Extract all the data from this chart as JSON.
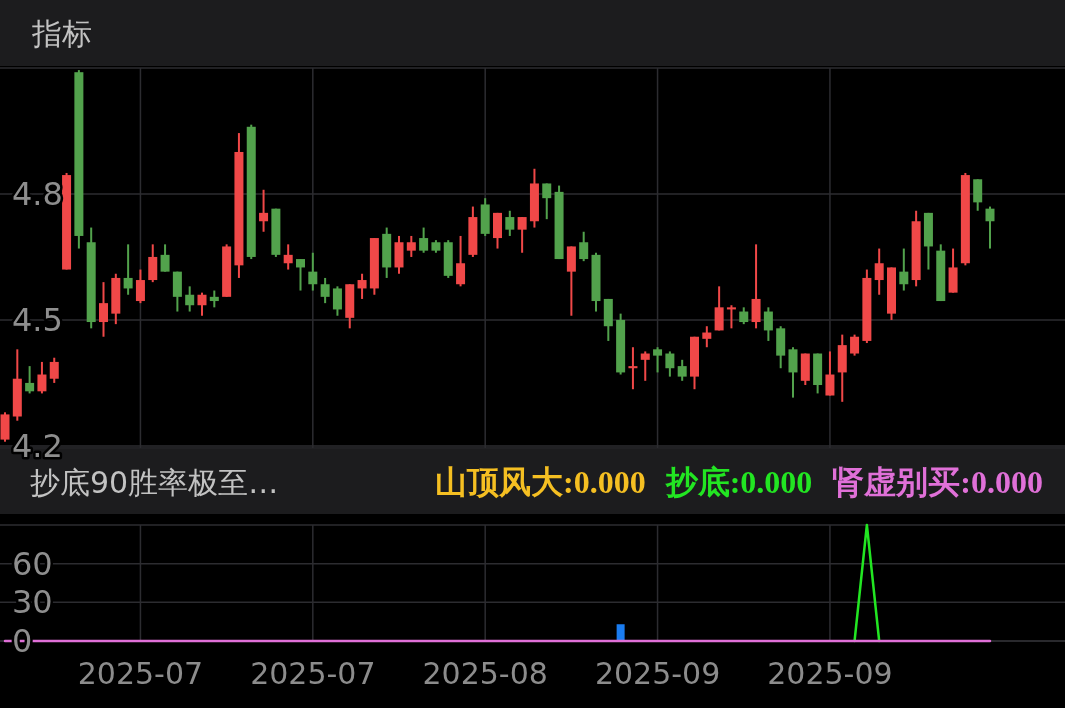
{
  "chart_data": [
    {
      "type": "candlestick",
      "title": "指标",
      "categories": [
        null,
        null,
        null,
        null,
        null,
        null,
        null,
        null,
        null,
        null,
        null,
        "2025-07",
        null,
        null,
        null,
        null,
        null,
        null,
        null,
        null,
        null,
        null,
        null,
        null,
        null,
        "2025-07",
        null,
        null,
        null,
        null,
        null,
        null,
        null,
        null,
        null,
        null,
        null,
        null,
        null,
        "2025-08",
        null,
        null,
        null,
        null,
        null,
        null,
        null,
        null,
        null,
        null,
        null,
        null,
        null,
        "2025-09",
        null,
        null,
        null,
        null,
        null,
        null,
        null,
        null,
        null,
        null,
        null,
        null,
        null,
        "2025-09",
        null,
        null,
        null,
        null,
        null,
        null,
        null,
        null,
        null,
        null,
        null,
        null,
        null
      ],
      "ohlc": [
        [
          4.215,
          4.28,
          4.21,
          4.275
        ],
        [
          4.27,
          4.43,
          4.26,
          4.36
        ],
        [
          4.35,
          4.39,
          4.325,
          4.33
        ],
        [
          4.33,
          4.4,
          4.325,
          4.37
        ],
        [
          4.36,
          4.41,
          4.35,
          4.4
        ],
        [
          4.62,
          4.85,
          4.62,
          4.845
        ],
        [
          5.09,
          5.095,
          4.67,
          4.7
        ],
        [
          4.685,
          4.72,
          4.48,
          4.495
        ],
        [
          4.495,
          4.59,
          4.46,
          4.54
        ],
        [
          4.515,
          4.61,
          4.49,
          4.6
        ],
        [
          4.6,
          4.68,
          4.56,
          4.575
        ],
        [
          4.545,
          4.62,
          4.54,
          4.595
        ],
        [
          4.595,
          4.68,
          4.59,
          4.65
        ],
        [
          4.655,
          4.68,
          4.615,
          4.615
        ],
        [
          4.615,
          4.615,
          4.52,
          4.555
        ],
        [
          4.56,
          4.58,
          4.52,
          4.535
        ],
        [
          4.535,
          4.565,
          4.51,
          4.56
        ],
        [
          4.555,
          4.57,
          4.53,
          4.545
        ],
        [
          4.555,
          4.68,
          4.555,
          4.675
        ],
        [
          4.63,
          4.945,
          4.6,
          4.9
        ],
        [
          4.96,
          4.965,
          4.645,
          4.65
        ],
        [
          4.735,
          4.81,
          4.71,
          4.755
        ],
        [
          4.765,
          4.765,
          4.65,
          4.655
        ],
        [
          4.635,
          4.68,
          4.62,
          4.655
        ],
        [
          4.645,
          4.645,
          4.57,
          4.625
        ],
        [
          4.615,
          4.66,
          4.57,
          4.585
        ],
        [
          4.585,
          4.6,
          4.54,
          4.555
        ],
        [
          4.575,
          4.58,
          4.51,
          4.525
        ],
        [
          4.505,
          4.585,
          4.48,
          4.585
        ],
        [
          4.575,
          4.61,
          4.55,
          4.595
        ],
        [
          4.575,
          4.695,
          4.56,
          4.695
        ],
        [
          4.705,
          4.72,
          4.6,
          4.625
        ],
        [
          4.625,
          4.7,
          4.61,
          4.685
        ],
        [
          4.665,
          4.7,
          4.65,
          4.685
        ],
        [
          4.695,
          4.72,
          4.66,
          4.665
        ],
        [
          4.685,
          4.69,
          4.66,
          4.665
        ],
        [
          4.685,
          4.69,
          4.6,
          4.605
        ],
        [
          4.585,
          4.7,
          4.58,
          4.635
        ],
        [
          4.655,
          4.77,
          4.65,
          4.745
        ],
        [
          4.775,
          4.79,
          4.7,
          4.705
        ],
        [
          4.695,
          4.755,
          4.67,
          4.755
        ],
        [
          4.745,
          4.76,
          4.7,
          4.715
        ],
        [
          4.715,
          4.745,
          4.66,
          4.745
        ],
        [
          4.735,
          4.86,
          4.72,
          4.825
        ],
        [
          4.825,
          4.825,
          4.74,
          4.79
        ],
        [
          4.805,
          4.82,
          4.645,
          4.645
        ],
        [
          4.615,
          4.675,
          4.51,
          4.675
        ],
        [
          4.685,
          4.71,
          4.64,
          4.645
        ],
        [
          4.655,
          4.66,
          4.52,
          4.545
        ],
        [
          4.55,
          4.55,
          4.45,
          4.485
        ],
        [
          4.5,
          4.515,
          4.37,
          4.375
        ],
        [
          4.385,
          4.435,
          4.335,
          4.39
        ],
        [
          4.405,
          4.425,
          4.355,
          4.42
        ],
        [
          4.43,
          4.435,
          4.375,
          4.415
        ],
        [
          4.42,
          4.425,
          4.365,
          4.385
        ],
        [
          4.39,
          4.405,
          4.355,
          4.365
        ],
        [
          4.365,
          4.46,
          4.335,
          4.46
        ],
        [
          4.455,
          4.485,
          4.435,
          4.47
        ],
        [
          4.475,
          4.58,
          4.475,
          4.53
        ],
        [
          4.525,
          4.535,
          4.48,
          4.53
        ],
        [
          4.52,
          4.53,
          4.49,
          4.495
        ],
        [
          4.495,
          4.68,
          4.48,
          4.55
        ],
        [
          4.52,
          4.53,
          4.45,
          4.475
        ],
        [
          4.48,
          4.485,
          4.385,
          4.415
        ],
        [
          4.43,
          4.435,
          4.315,
          4.375
        ],
        [
          4.355,
          4.42,
          4.345,
          4.42
        ],
        [
          4.42,
          4.42,
          4.325,
          4.345
        ],
        [
          4.32,
          4.425,
          4.32,
          4.37
        ],
        [
          4.375,
          4.465,
          4.305,
          4.44
        ],
        [
          4.42,
          4.465,
          4.415,
          4.46
        ],
        [
          4.45,
          4.62,
          4.445,
          4.6
        ],
        [
          4.595,
          4.67,
          4.56,
          4.635
        ],
        [
          4.515,
          4.625,
          4.5,
          4.625
        ],
        [
          4.615,
          4.67,
          4.57,
          4.585
        ],
        [
          4.595,
          4.76,
          4.58,
          4.735
        ],
        [
          4.755,
          4.755,
          4.62,
          4.675
        ],
        [
          4.665,
          4.68,
          4.545,
          4.545
        ],
        [
          4.565,
          4.67,
          4.565,
          4.625
        ],
        [
          4.635,
          4.85,
          4.63,
          4.845
        ],
        [
          4.835,
          4.835,
          4.76,
          4.78
        ],
        [
          4.765,
          4.77,
          4.67,
          4.735
        ]
      ],
      "colors": [
        "#f04848",
        "#f04848",
        "#52a24c",
        "#f04848",
        "#f04848",
        "#f04848",
        "#52a24c",
        "#52a24c",
        "#f04848",
        "#f04848",
        "#52a24c",
        "#f04848",
        "#f04848",
        "#52a24c",
        "#52a24c",
        "#52a24c",
        "#f04848",
        "#52a24c",
        "#f04848",
        "#f04848",
        "#52a24c",
        "#f04848",
        "#52a24c",
        "#f04848",
        "#52a24c",
        "#52a24c",
        "#52a24c",
        "#52a24c",
        "#f04848",
        "#f04848",
        "#f04848",
        "#52a24c",
        "#f04848",
        "#f04848",
        "#52a24c",
        "#52a24c",
        "#52a24c",
        "#f04848",
        "#f04848",
        "#52a24c",
        "#f04848",
        "#52a24c",
        "#f04848",
        "#f04848",
        "#52a24c",
        "#52a24c",
        "#f04848",
        "#52a24c",
        "#52a24c",
        "#52a24c",
        "#52a24c",
        "#f04848",
        "#f04848",
        "#52a24c",
        "#52a24c",
        "#52a24c",
        "#f04848",
        "#f04848",
        "#f04848",
        "#f04848",
        "#52a24c",
        "#f04848",
        "#52a24c",
        "#52a24c",
        "#52a24c",
        "#f04848",
        "#52a24c",
        "#f04848",
        "#f04848",
        "#f04848",
        "#f04848",
        "#f04848",
        "#f04848",
        "#52a24c",
        "#f04848",
        "#52a24c",
        "#52a24c",
        "#f04848",
        "#f04848",
        "#52a24c",
        "#52a24c"
      ],
      "ylim": [
        4.195,
        5.1
      ],
      "yticks": [
        4.2,
        4.5,
        4.8
      ],
      "grid": true,
      "tick_labels": "y"
    },
    {
      "type": "line",
      "title": "抄底90胜率极至…",
      "legend": "top",
      "categories": [
        null,
        null,
        null,
        null,
        null,
        null,
        null,
        null,
        null,
        null,
        null,
        "2025-07",
        null,
        null,
        null,
        null,
        null,
        null,
        null,
        null,
        null,
        null,
        null,
        null,
        null,
        "2025-07",
        null,
        null,
        null,
        null,
        null,
        null,
        null,
        null,
        null,
        null,
        null,
        null,
        null,
        "2025-08",
        null,
        null,
        null,
        null,
        null,
        null,
        null,
        null,
        null,
        null,
        null,
        null,
        null,
        "2025-09",
        null,
        null,
        null,
        null,
        null,
        null,
        null,
        null,
        null,
        null,
        null,
        null,
        null,
        "2025-09",
        null,
        null,
        null,
        null,
        null,
        null,
        null,
        null,
        null,
        null,
        null,
        null,
        null
      ],
      "series": [
        {
          "name": "山顶风大:0.000",
          "color": "#f5bf22",
          "type": "line",
          "values": [
            null,
            null,
            null,
            null,
            null,
            null,
            null,
            null,
            null,
            null,
            null,
            null,
            null,
            null,
            null,
            null,
            null,
            null,
            null,
            null,
            null,
            null,
            null,
            null,
            null,
            null,
            null,
            null,
            null,
            null,
            null,
            null,
            null,
            null,
            null,
            null,
            null,
            null,
            null,
            null,
            null,
            null,
            null,
            null,
            null,
            null,
            null,
            null,
            null,
            null,
            null,
            null,
            null,
            null,
            null,
            null,
            null,
            null,
            null,
            null,
            null,
            null,
            null,
            null,
            null,
            null,
            null,
            null,
            null,
            null,
            null,
            null,
            null,
            null,
            null,
            null,
            null,
            null,
            null,
            null,
            null
          ]
        },
        {
          "color": "#1a7cf0",
          "type": "bar",
          "values": [
            null,
            null,
            null,
            null,
            null,
            null,
            null,
            null,
            null,
            null,
            null,
            null,
            null,
            null,
            null,
            null,
            null,
            null,
            null,
            null,
            null,
            null,
            null,
            null,
            null,
            null,
            null,
            null,
            null,
            null,
            null,
            null,
            null,
            null,
            null,
            null,
            null,
            null,
            null,
            null,
            null,
            null,
            null,
            null,
            null,
            null,
            null,
            null,
            null,
            null,
            13,
            null,
            null,
            null,
            null,
            null,
            null,
            null,
            null,
            null,
            null,
            null,
            null,
            null,
            null,
            null,
            null,
            null,
            null,
            null,
            null,
            null,
            null,
            null,
            null,
            null,
            null,
            null,
            null,
            null,
            null
          ]
        },
        {
          "name": "抄底:0.000",
          "color": "#22e622",
          "type": "line",
          "values": [
            null,
            null,
            null,
            null,
            null,
            null,
            null,
            null,
            null,
            null,
            null,
            null,
            null,
            null,
            null,
            null,
            null,
            null,
            null,
            null,
            null,
            null,
            null,
            null,
            null,
            null,
            null,
            null,
            null,
            null,
            null,
            null,
            null,
            null,
            null,
            null,
            null,
            null,
            null,
            null,
            null,
            null,
            null,
            null,
            null,
            null,
            null,
            null,
            null,
            null,
            null,
            null,
            null,
            null,
            null,
            null,
            null,
            null,
            null,
            null,
            null,
            null,
            null,
            null,
            null,
            null,
            null,
            null,
            null,
            0,
            90,
            0,
            null,
            null,
            null,
            null,
            null,
            null,
            null,
            null,
            null
          ]
        },
        {
          "name": "肾虚别买:0.000",
          "color": "#e070d8",
          "type": "line",
          "values": [
            0,
            0,
            0,
            0,
            0,
            0,
            0,
            0,
            0,
            0,
            0,
            0,
            0,
            0,
            0,
            0,
            0,
            0,
            0,
            0,
            0,
            0,
            0,
            0,
            0,
            0,
            0,
            0,
            0,
            0,
            0,
            0,
            0,
            0,
            0,
            0,
            0,
            0,
            0,
            0,
            0,
            0,
            0,
            0,
            0,
            0,
            0,
            0,
            0,
            0,
            0,
            0,
            0,
            0,
            0,
            0,
            0,
            0,
            0,
            0,
            0,
            0,
            0,
            0,
            0,
            0,
            0,
            0,
            0,
            0,
            0,
            0,
            0,
            0,
            0,
            0,
            0,
            0,
            0,
            0,
            0
          ]
        }
      ],
      "ylim": [
        0,
        90
      ],
      "yticks": [
        0,
        30,
        60
      ],
      "grid": true
    }
  ]
}
